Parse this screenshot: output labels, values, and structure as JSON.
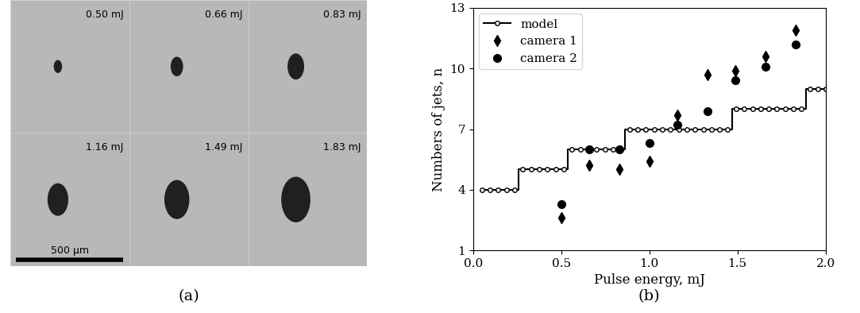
{
  "panels": [
    "(a)",
    "(b)"
  ],
  "images": {
    "labels": [
      "0.50 mJ",
      "0.66 mJ",
      "0.83 mJ",
      "1.16 mJ",
      "1.49 mJ",
      "1.83 mJ"
    ],
    "scale_bar": "500 μm"
  },
  "chart_data": {
    "type": "scatter",
    "x_label": "Pulse energy, mJ",
    "y_label": "Numbers of jets, n",
    "xlim": [
      0,
      2.0
    ],
    "xticks": [
      {
        "value": 0,
        "label": "0.0"
      },
      {
        "value": 0.5,
        "label": "0.5"
      },
      {
        "value": 1,
        "label": "1.0"
      },
      {
        "value": 1.5,
        "label": "1.5"
      },
      {
        "value": 2,
        "label": "2.0"
      }
    ],
    "ylim": [
      1,
      13
    ],
    "yticks": [
      1,
      4,
      7,
      10,
      13
    ],
    "grid": false,
    "legend": "upper left",
    "series": [
      {
        "name": "model",
        "type": "line",
        "color": "black",
        "marker": "o",
        "line_style": "steps",
        "x": [
          0.05,
          0.097,
          0.143,
          0.19,
          0.236,
          0.283,
          0.329,
          0.376,
          0.422,
          0.469,
          0.515,
          0.562,
          0.608,
          0.655,
          0.701,
          0.748,
          0.794,
          0.841,
          0.887,
          0.934,
          0.98,
          1.027,
          1.073,
          1.12,
          1.166,
          1.213,
          1.259,
          1.306,
          1.352,
          1.399,
          1.445,
          1.492,
          1.538,
          1.585,
          1.631,
          1.678,
          1.724,
          1.771,
          1.817,
          1.864,
          1.91,
          1.957,
          2.0
        ],
        "values": [
          4,
          4,
          4,
          4,
          4,
          5,
          5,
          5,
          5,
          5,
          5,
          6,
          6,
          6,
          6,
          6,
          6,
          6,
          7,
          7,
          7,
          7,
          7,
          7,
          7,
          7,
          7,
          7,
          7,
          7,
          7,
          8,
          8,
          8,
          8,
          8,
          8,
          8,
          8,
          8,
          9,
          9,
          9
        ]
      },
      {
        "name": "camera 1",
        "type": "scatter",
        "color": "black",
        "marker": "d",
        "x": [
          0.5,
          0.66,
          0.83,
          1.0,
          1.16,
          1.33,
          1.49,
          1.66,
          1.83
        ],
        "values": [
          2.6,
          5.2,
          5.0,
          5.4,
          7.7,
          9.7,
          9.9,
          10.6,
          11.9
        ]
      },
      {
        "name": "camera 2",
        "type": "scatter",
        "color": "black",
        "marker": "o",
        "x": [
          0.5,
          0.66,
          0.83,
          1.0,
          1.16,
          1.33,
          1.49,
          1.66,
          1.83
        ],
        "values": [
          3.3,
          6.0,
          6.0,
          6.3,
          7.2,
          7.9,
          9.4,
          10.1,
          11.2
        ]
      }
    ]
  }
}
